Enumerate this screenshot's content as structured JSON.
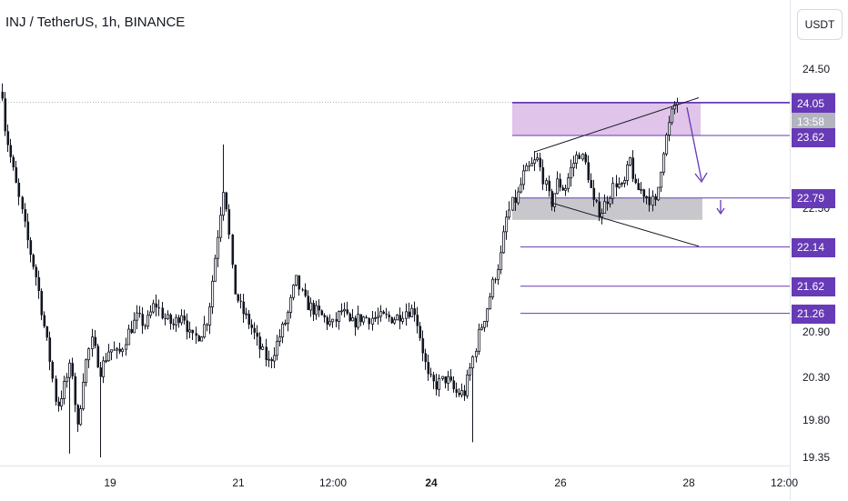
{
  "header": {
    "title": "INJ / TetherUS, 1h, BINANCE",
    "currency_button": "USDT"
  },
  "colors": {
    "candle": "#131722",
    "purple": "#673ab7",
    "resistance_zone": "#e1c4ea",
    "support_zone": "#c8c8cc",
    "current_price_badge": "#9598a1",
    "countdown_badge": "#b2b5be"
  },
  "chart_data": {
    "type": "candlestick",
    "title": "INJ / TetherUS, 1h, BINANCE",
    "y_ticks": [
      "24.50",
      "22.50",
      "22.00",
      "21.50",
      "20.90",
      "20.30",
      "19.80",
      "19.35"
    ],
    "x_ticks": [
      "19",
      "21",
      "12:00",
      "24",
      "26",
      "28",
      "12:00"
    ],
    "bold_x_tick": "24",
    "current_price": "24.06",
    "countdown": "13:58",
    "horizontal_levels": [
      24.05,
      23.62,
      22.79,
      22.14,
      21.62,
      21.26
    ],
    "resistance_zone": [
      23.62,
      24.06
    ],
    "support_zone": [
      22.5,
      22.79
    ],
    "annotations": [
      "rising wedge",
      "projected breakdown arrow",
      "down arrow"
    ],
    "grid": false
  }
}
